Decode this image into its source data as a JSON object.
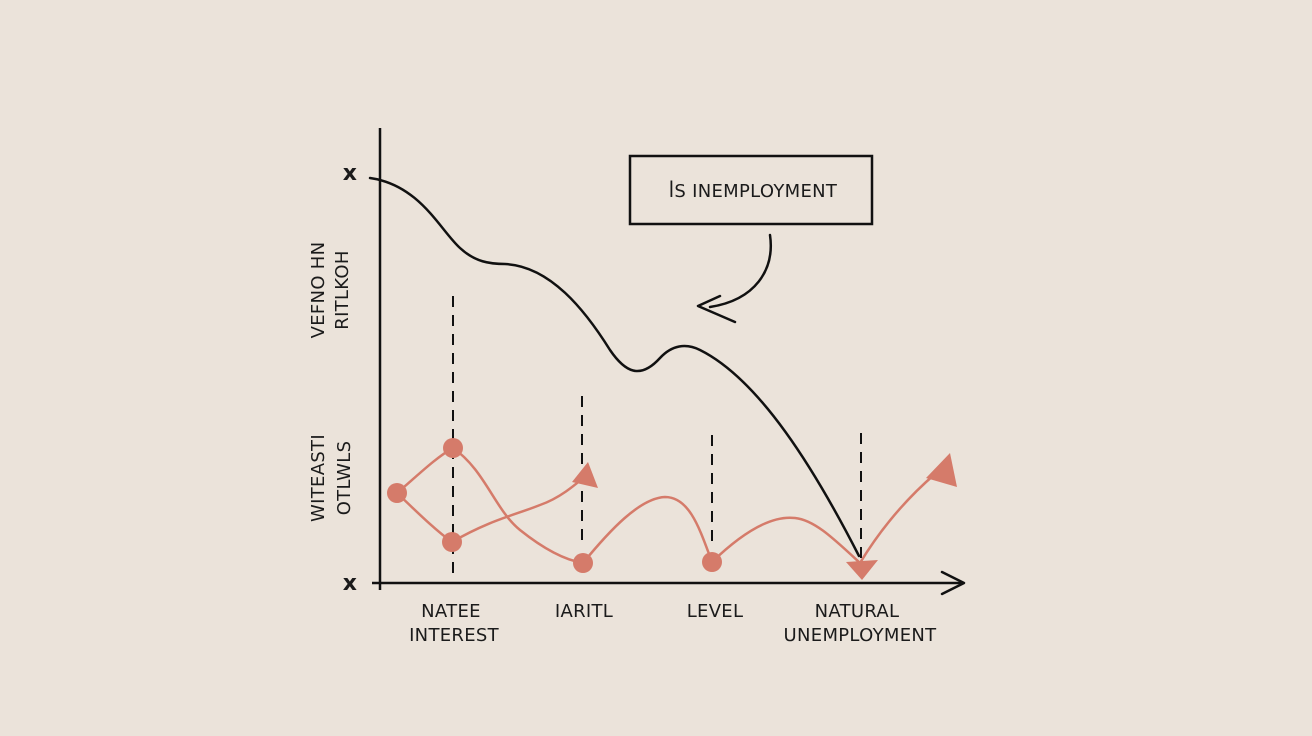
{
  "annotation": {
    "label": "ꟾS INEMPLOYMENT"
  },
  "y_axis": {
    "top_marker": "x",
    "bottom_marker": "x",
    "upper_label": [
      "VEFNO HN",
      "RITLKOH"
    ],
    "lower_label": [
      "WITEASTI",
      "OTLWLS"
    ]
  },
  "x_axis": {
    "labels": [
      {
        "lines": [
          "NATEE",
          "INTEREST"
        ]
      },
      {
        "lines": [
          "IARITL"
        ]
      },
      {
        "lines": [
          "LEVEL"
        ]
      },
      {
        "lines": [
          "NATURAL",
          "UNEMPLOYMENT"
        ]
      }
    ]
  },
  "colors": {
    "background": "#ebe3da",
    "ink": "#111111",
    "accent": "#d57b6a"
  }
}
